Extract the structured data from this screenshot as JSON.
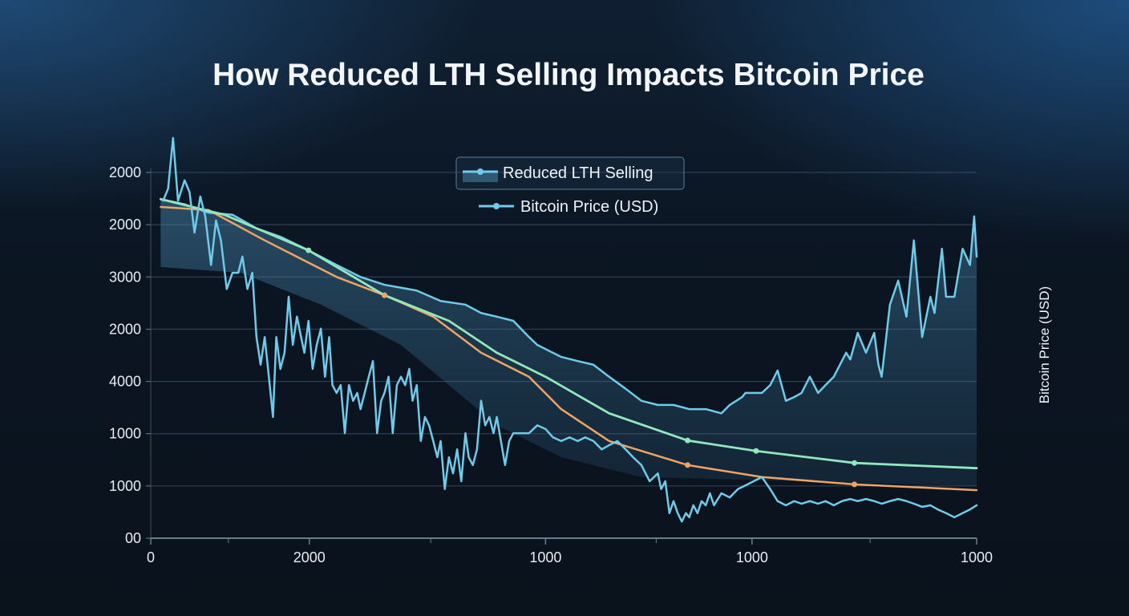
{
  "chart_data": {
    "type": "line",
    "title": "How Reduced LTH Selling Impacts Bitcoin Price",
    "xlabel": "",
    "ylabel": "Bitcoin Price (USD)",
    "x_tick_labels": [
      "0",
      "2000",
      "1000",
      "1000",
      "1000"
    ],
    "x_tick_positions": [
      0,
      19.2,
      47.8,
      72.8,
      100
    ],
    "x_minor_ticks": [
      9.4,
      33.9,
      61.2,
      87.1
    ],
    "y_tick_labels": [
      "00",
      "1000",
      "1000",
      "4000",
      "2000",
      "3000",
      "2000",
      "2000"
    ],
    "y_tick_positions": [
      0,
      1,
      2,
      3,
      4,
      5,
      6,
      7
    ],
    "xlim": [
      0,
      100
    ],
    "ylim": [
      0,
      7
    ],
    "grid": true,
    "legend_placement": "top-center",
    "legend": [
      {
        "label": "Reduced LTH Selling",
        "style": "area"
      },
      {
        "label": "Bitcoin Price (USD)",
        "style": "line"
      }
    ],
    "colors": {
      "blue": "#6fcbe9",
      "green": "#92e8bd",
      "orange": "#eda464",
      "fill": "#3f7fa3"
    },
    "series": [
      {
        "name": "Reduced LTH Selling",
        "role": "area-upper",
        "x": [
          1.2,
          4.1,
          7.0,
          9.9,
          12.8,
          15.7,
          19.1,
          22.5,
          25.4,
          28.3,
          32.2,
          35.1,
          38.1,
          40.0,
          41.9,
          43.9,
          45.8,
          46.8,
          47.8,
          49.7,
          51.7,
          53.6,
          55.5,
          57.5,
          59.4,
          61.4,
          63.3,
          65.2,
          67.2,
          69.1,
          70.1,
          71.6,
          72.0,
          74.0,
          75.0,
          75.9,
          76.9,
          77.9,
          78.8,
          79.8,
          80.8,
          81.7,
          82.7,
          84.2,
          84.7,
          85.6,
          86.6,
          87.6,
          88.1,
          88.5,
          89.5,
          90.5,
          91.5,
          92.4,
          93.4,
          94.4,
          94.9,
          95.8,
          96.3,
          97.3,
          98.3,
          99.2,
          99.7,
          100
        ],
        "y": [
          6.49,
          6.39,
          6.23,
          6.19,
          5.93,
          5.77,
          5.51,
          5.23,
          5.0,
          4.85,
          4.74,
          4.54,
          4.47,
          4.31,
          4.24,
          4.16,
          3.85,
          3.7,
          3.62,
          3.47,
          3.39,
          3.32,
          3.09,
          2.86,
          2.63,
          2.55,
          2.55,
          2.47,
          2.47,
          2.39,
          2.55,
          2.7,
          2.78,
          2.78,
          2.93,
          3.21,
          2.63,
          2.7,
          2.78,
          3.09,
          2.78,
          2.93,
          3.09,
          3.55,
          3.42,
          3.93,
          3.55,
          3.93,
          3.32,
          3.09,
          4.47,
          4.93,
          4.24,
          5.7,
          3.85,
          4.62,
          4.31,
          5.54,
          4.62,
          4.62,
          5.54,
          5.23,
          6.16,
          5.39
        ]
      },
      {
        "role": "area-lower",
        "x": [
          1.2,
          10.9,
          20.6,
          30.3,
          36.1,
          41.9,
          49.7,
          59.4,
          100
        ],
        "y": [
          5.19,
          5.08,
          4.47,
          3.7,
          2.93,
          2.16,
          1.55,
          1.17,
          1.0
        ]
      },
      {
        "name": "Bitcoin Price (USD)",
        "role": "line",
        "x": [
          1.5,
          2.1,
          2.7,
          3.3,
          4.1,
          4.7,
          5.3,
          6.0,
          6.6,
          7.3,
          7.9,
          8.5,
          9.2,
          9.9,
          10.6,
          11.1,
          11.7,
          12.3,
          12.8,
          13.3,
          13.8,
          14.3,
          14.8,
          15.2,
          15.7,
          16.2,
          16.7,
          17.2,
          17.7,
          18.2,
          18.6,
          19.1,
          19.6,
          20.1,
          20.6,
          21.1,
          21.6,
          22.0,
          22.5,
          23.0,
          23.5,
          24.0,
          24.5,
          25.0,
          25.4,
          25.9,
          26.4,
          26.9,
          27.4,
          27.9,
          28.3,
          28.8,
          29.3,
          29.8,
          30.3,
          30.8,
          31.3,
          31.7,
          32.2,
          32.7,
          33.2,
          33.7,
          34.2,
          34.7,
          35.1,
          35.6,
          36.1,
          36.6,
          37.1,
          37.6,
          38.1,
          38.5,
          39.0,
          39.5,
          40.0,
          40.5,
          41.0,
          41.5,
          41.9,
          42.4,
          42.9,
          43.4,
          43.9,
          44.9,
          45.8,
          46.8,
          47.8,
          48.7,
          49.7,
          50.7,
          51.7,
          52.6,
          53.6,
          54.6,
          55.5,
          56.5,
          57.5,
          58.4,
          59.4,
          60.4,
          61.4,
          61.8,
          62.3,
          62.8,
          63.3,
          63.8,
          64.3,
          64.8,
          65.2,
          65.7,
          66.2,
          66.7,
          67.2,
          67.7,
          68.2,
          69.1,
          70.1,
          71.1,
          72.0,
          73.0,
          74.0,
          75.0,
          75.9,
          76.9,
          77.9,
          78.8,
          79.8,
          80.8,
          81.7,
          82.7,
          83.7,
          84.7,
          85.6,
          86.6,
          87.6,
          88.5,
          89.5,
          90.5,
          91.5,
          92.4,
          93.4,
          94.4,
          95.3,
          96.3,
          97.3,
          98.3,
          99.2,
          100
        ],
        "y": [
          6.46,
          6.69,
          7.66,
          6.46,
          6.85,
          6.62,
          5.85,
          6.54,
          6.16,
          5.23,
          6.08,
          5.7,
          4.77,
          5.08,
          5.08,
          5.39,
          4.77,
          5.08,
          3.85,
          3.32,
          3.85,
          3.09,
          2.32,
          3.85,
          3.24,
          3.55,
          4.62,
          3.7,
          4.24,
          3.85,
          3.55,
          4.16,
          3.24,
          3.7,
          4.01,
          3.09,
          3.85,
          2.93,
          2.78,
          2.93,
          2.01,
          2.93,
          2.63,
          2.78,
          2.47,
          2.78,
          3.09,
          3.39,
          2.01,
          2.63,
          2.78,
          3.09,
          2.01,
          2.93,
          3.09,
          2.93,
          3.24,
          2.63,
          2.93,
          1.86,
          2.32,
          2.16,
          1.86,
          1.55,
          1.86,
          0.94,
          1.55,
          1.24,
          1.7,
          1.09,
          2.01,
          1.55,
          1.4,
          1.7,
          2.63,
          2.16,
          2.32,
          2.01,
          2.32,
          1.86,
          1.4,
          1.86,
          2.01,
          2.01,
          2.01,
          2.16,
          2.09,
          1.93,
          1.86,
          1.93,
          1.86,
          1.93,
          1.86,
          1.7,
          1.78,
          1.86,
          1.7,
          1.55,
          1.4,
          1.09,
          1.24,
          0.94,
          1.09,
          0.48,
          0.71,
          0.48,
          0.32,
          0.48,
          0.4,
          0.63,
          0.48,
          0.71,
          0.63,
          0.86,
          0.63,
          0.86,
          0.78,
          0.94,
          1.01,
          1.09,
          1.17,
          0.94,
          0.71,
          0.63,
          0.71,
          0.66,
          0.71,
          0.66,
          0.71,
          0.63,
          0.71,
          0.75,
          0.71,
          0.75,
          0.71,
          0.66,
          0.71,
          0.75,
          0.71,
          0.66,
          0.6,
          0.63,
          0.55,
          0.48,
          0.4,
          0.48,
          0.55,
          0.63
        ]
      },
      {
        "role": "trend-green",
        "x": [
          1.2,
          8.9,
          19.1,
          28.3,
          36.1,
          41.9,
          47.8,
          55.5,
          65.0,
          73.3,
          85.2,
          100
        ],
        "y": [
          6.49,
          6.19,
          5.51,
          4.65,
          4.16,
          3.55,
          3.09,
          2.39,
          1.87,
          1.67,
          1.44,
          1.34
        ],
        "markers": [
          19.1,
          28.3,
          65.0,
          73.3,
          85.2
        ]
      },
      {
        "role": "trend-orange",
        "x": [
          1.2,
          7.0,
          13.8,
          22.5,
          28.3,
          34.2,
          40.0,
          45.8,
          49.7,
          55.5,
          65.0,
          74.0,
          85.2,
          100
        ],
        "y": [
          6.34,
          6.28,
          5.7,
          5.0,
          4.65,
          4.24,
          3.55,
          3.09,
          2.47,
          1.86,
          1.4,
          1.17,
          1.03,
          0.92
        ],
        "markers": [
          28.3,
          65.0,
          85.2
        ]
      }
    ]
  }
}
